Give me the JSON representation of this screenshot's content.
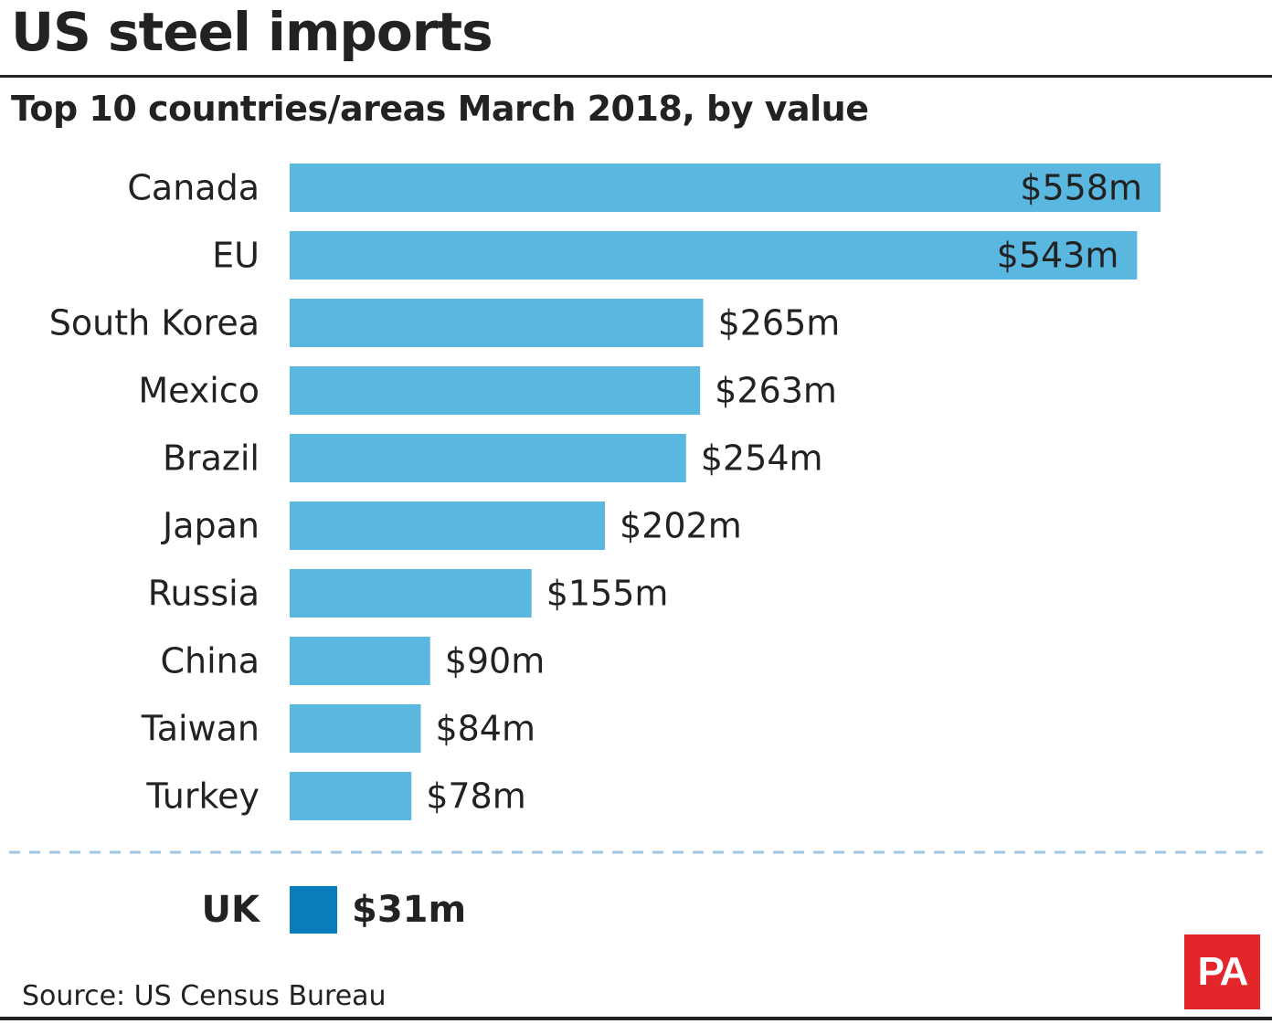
{
  "header": {
    "title": "US steel imports",
    "subtitle": "Top 10 countries/areas March 2018, by value"
  },
  "footer": {
    "source": "Source: US Census Bureau",
    "logo_text": "PA"
  },
  "colors": {
    "bar": "#5ab8e0",
    "highlight_bar": "#0b7dbb",
    "text": "#222222",
    "divider": "#9fc7e3",
    "logo_bg": "#e3262a"
  },
  "chart_data": {
    "type": "bar",
    "orientation": "horizontal",
    "title": "US steel imports",
    "subtitle": "Top 10 countries/areas March 2018, by value",
    "categories": [
      "Canada",
      "EU",
      "South Korea",
      "Mexico",
      "Brazil",
      "Japan",
      "Russia",
      "China",
      "Taiwan",
      "Turkey"
    ],
    "values": [
      558,
      543,
      265,
      263,
      254,
      202,
      155,
      90,
      84,
      78
    ],
    "labels": [
      "$558m",
      "$543m",
      "$265m",
      "$263m",
      "$254m",
      "$202m",
      "$155m",
      "$90m",
      "$84m",
      "$78m"
    ],
    "units": "$m",
    "xlim": [
      0,
      558
    ],
    "highlight": {
      "category": "UK",
      "value": 31,
      "label": "$31m"
    },
    "source": "Source: US Census Bureau"
  }
}
